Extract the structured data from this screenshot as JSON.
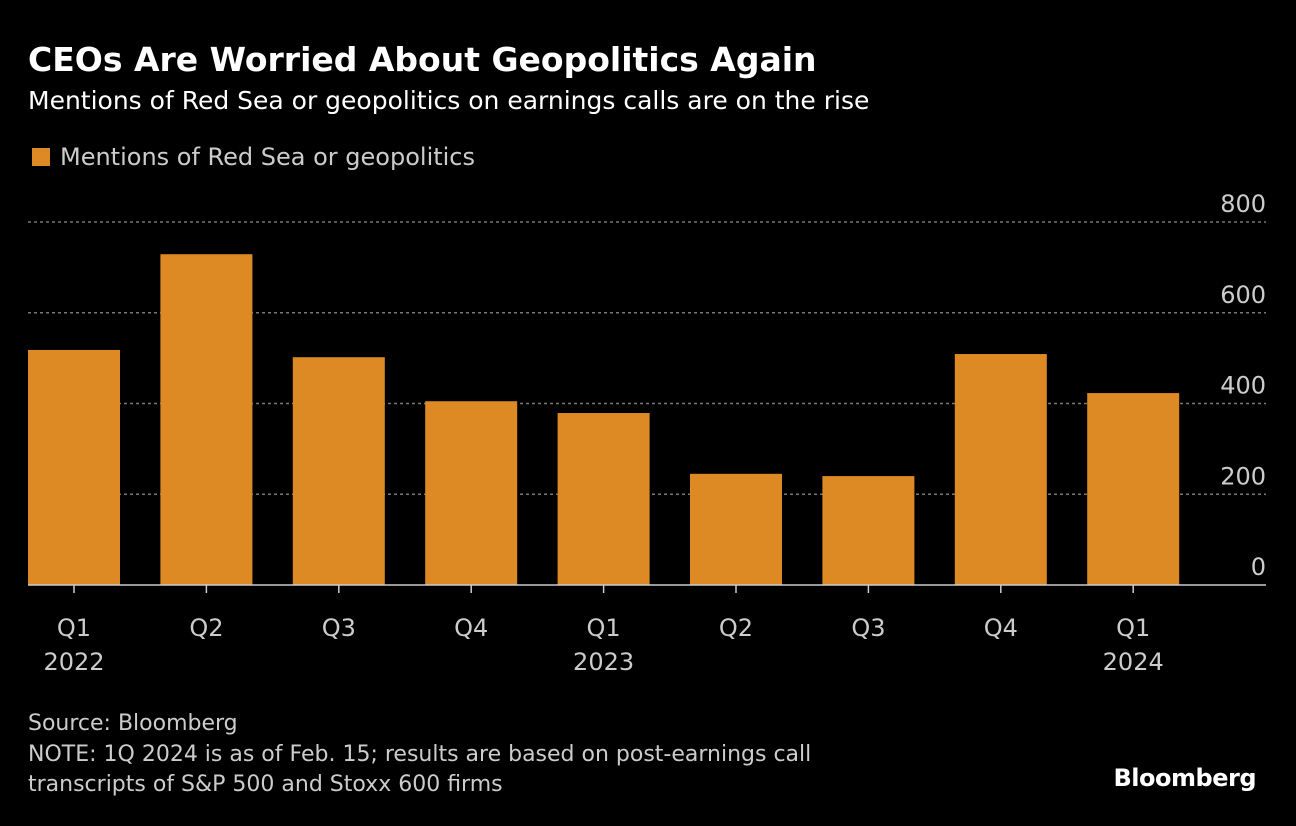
{
  "title": "CEOs Are Worried About Geopolitics Again",
  "subtitle": "Mentions of Red Sea or geopolitics on earnings calls are on the rise",
  "source": "Source: Bloomberg",
  "note_line1": "NOTE: 1Q 2024 is as of Feb. 15; results are based on post-earnings call",
  "note_line2": "transcripts of S&P 500 and Stoxx 600 firms",
  "logo": "Bloomberg",
  "colors": {
    "bar": "#DD8A24",
    "grid": "#777777",
    "text": "#CCCCCC"
  },
  "chart_data": {
    "type": "bar",
    "title": "CEOs Are Worried About Geopolitics Again",
    "subtitle": "Mentions of Red Sea or geopolitics on earnings calls are on the rise",
    "categories": [
      "Q1",
      "Q2",
      "Q3",
      "Q4",
      "Q1",
      "Q2",
      "Q3",
      "Q4",
      "Q1"
    ],
    "year_labels": [
      "2022",
      "",
      "",
      "",
      "2023",
      "",
      "",
      "",
      "2024"
    ],
    "series": [
      {
        "name": "Mentions of Red Sea or geopolitics",
        "values": [
          518,
          729,
          502,
          405,
          379,
          245,
          240,
          509,
          423
        ]
      }
    ],
    "ylim": [
      0,
      800
    ],
    "yticks": [
      0,
      200,
      400,
      600,
      800
    ],
    "y_axis_position": "right",
    "grid": true,
    "legend": "top-left"
  }
}
